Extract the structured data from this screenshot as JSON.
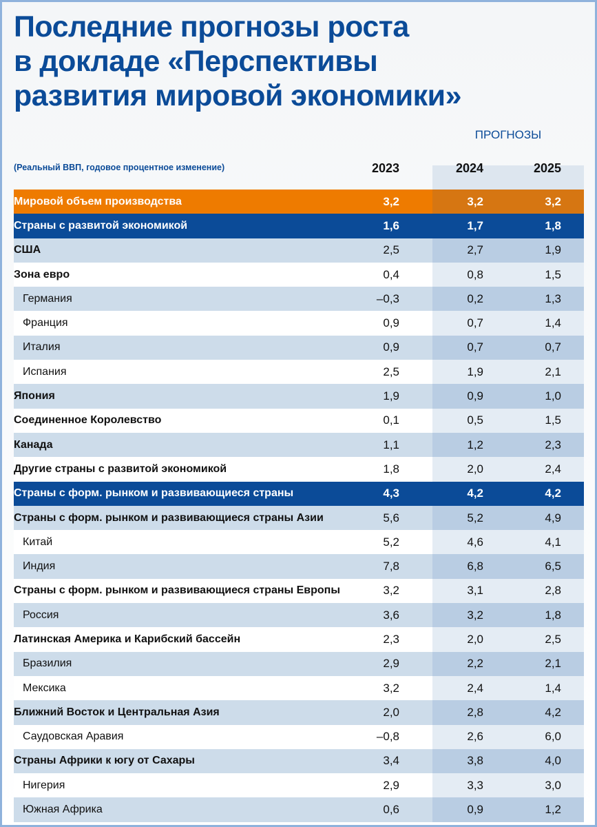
{
  "title_lines": [
    "Последние прогнозы роста",
    "в докладе «Перспективы",
    "развития мировой экономики»"
  ],
  "forecast_label": "ПРОГНОЗЫ",
  "unit_note": "(Реальный ВВП, годовое процентное изменение)",
  "colors": {
    "title": "#0b4b98",
    "world_row": "#ee7b00",
    "group_row": "#0b4b98",
    "shaded_row": "#cddcea"
  },
  "chart_data": {
    "type": "table",
    "columns": [
      "2023",
      "2024",
      "2025"
    ],
    "rows": [
      {
        "label": "Мировой объем производства",
        "style": "orange",
        "values": [
          "3,2",
          "3,2",
          "3,2"
        ]
      },
      {
        "label": "Страны с развитой экономикой",
        "style": "blue",
        "values": [
          "1,6",
          "1,7",
          "1,8"
        ]
      },
      {
        "label": "США",
        "style": "main",
        "values": [
          "2,5",
          "2,7",
          "1,9"
        ]
      },
      {
        "label": "Зона евро",
        "style": "main",
        "values": [
          "0,4",
          "0,8",
          "1,5"
        ]
      },
      {
        "label": "Германия",
        "style": "sub",
        "values": [
          "–0,3",
          "0,2",
          "1,3"
        ]
      },
      {
        "label": "Франция",
        "style": "sub",
        "values": [
          "0,9",
          "0,7",
          "1,4"
        ]
      },
      {
        "label": "Италия",
        "style": "sub",
        "values": [
          "0,9",
          "0,7",
          "0,7"
        ]
      },
      {
        "label": "Испания",
        "style": "sub",
        "values": [
          "2,5",
          "1,9",
          "2,1"
        ]
      },
      {
        "label": "Япония",
        "style": "main",
        "values": [
          "1,9",
          "0,9",
          "1,0"
        ]
      },
      {
        "label": "Соединенное Королевство",
        "style": "main",
        "values": [
          "0,1",
          "0,5",
          "1,5"
        ]
      },
      {
        "label": "Канада",
        "style": "main",
        "values": [
          "1,1",
          "1,2",
          "2,3"
        ]
      },
      {
        "label": "Другие страны с развитой экономикой",
        "style": "main",
        "values": [
          "1,8",
          "2,0",
          "2,4"
        ]
      },
      {
        "label": "Страны с форм. рынком и развивающиеся страны",
        "style": "blue",
        "values": [
          "4,3",
          "4,2",
          "4,2"
        ]
      },
      {
        "label": "Страны с форм. рынком и развивающиеся страны Азии",
        "style": "main",
        "values": [
          "5,6",
          "5,2",
          "4,9"
        ]
      },
      {
        "label": "Китай",
        "style": "sub",
        "values": [
          "5,2",
          "4,6",
          "4,1"
        ]
      },
      {
        "label": "Индия",
        "style": "sub",
        "values": [
          "7,8",
          "6,8",
          "6,5"
        ]
      },
      {
        "label": "Страны с форм. рынком и развивающиеся страны Европы",
        "style": "main",
        "values": [
          "3,2",
          "3,1",
          "2,8"
        ]
      },
      {
        "label": "Россия",
        "style": "sub",
        "values": [
          "3,6",
          "3,2",
          "1,8"
        ]
      },
      {
        "label": "Латинская Америка и Карибский бассейн",
        "style": "main",
        "values": [
          "2,3",
          "2,0",
          "2,5"
        ]
      },
      {
        "label": "Бразилия",
        "style": "sub",
        "values": [
          "2,9",
          "2,2",
          "2,1"
        ]
      },
      {
        "label": "Мексика",
        "style": "sub",
        "values": [
          "3,2",
          "2,4",
          "1,4"
        ]
      },
      {
        "label": "Ближний Восток и Центральная Азия",
        "style": "main",
        "values": [
          "2,0",
          "2,8",
          "4,2"
        ]
      },
      {
        "label": "Саудовская Аравия",
        "style": "sub",
        "values": [
          "–0,8",
          "2,6",
          "6,0"
        ]
      },
      {
        "label": "Страны Африки к югу от Сахары",
        "style": "main",
        "values": [
          "3,4",
          "3,8",
          "4,0"
        ]
      },
      {
        "label": "Нигерия",
        "style": "sub",
        "values": [
          "2,9",
          "3,3",
          "3,0"
        ]
      },
      {
        "label": "Южная Африка",
        "style": "sub",
        "values": [
          "0,6",
          "0,9",
          "1,2"
        ]
      }
    ]
  }
}
